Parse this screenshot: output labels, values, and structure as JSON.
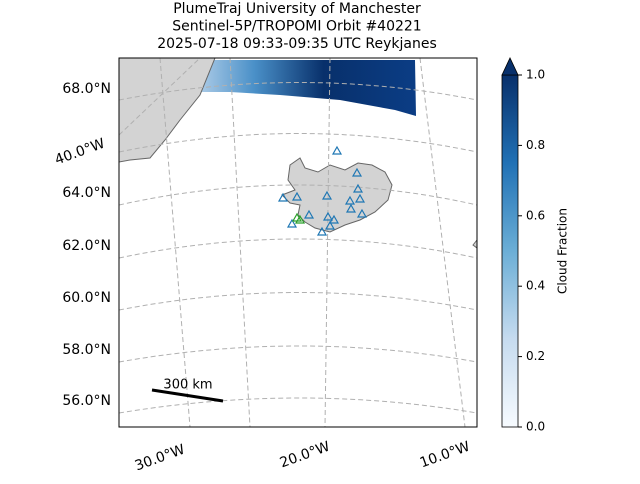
{
  "title": [
    "PlumeTraj    University of Manchester",
    "Sentinel-5P/TROPOMI Orbit #40221",
    "2025-07-18   09:33-09:35 UTC   Reykjanes"
  ],
  "map": {
    "lat_labels": [
      "68.0°N",
      "64.0°N",
      "62.0°N",
      "60.0°N",
      "58.0°N",
      "56.0°N"
    ],
    "lon_labels": [
      "40.0°W",
      "30.0°W",
      "20.0°W",
      "10.0°W"
    ],
    "scale_bar_label": "300 km"
  },
  "colorbar": {
    "label": "Cloud Fraction",
    "lim": [
      0,
      1
    ],
    "ticks": [
      {
        "value": 0,
        "label": "0.0"
      },
      {
        "value": 0.2,
        "label": "0.2"
      },
      {
        "value": 0.4,
        "label": "0.4"
      },
      {
        "value": 0.6,
        "label": "0.6"
      },
      {
        "value": 0.8,
        "label": "0.8"
      },
      {
        "value": 1,
        "label": "1.0"
      }
    ],
    "colors": [
      "#f7fbff",
      "#c6dbef",
      "#6baed6",
      "#2171b5",
      "#08306b"
    ]
  }
}
